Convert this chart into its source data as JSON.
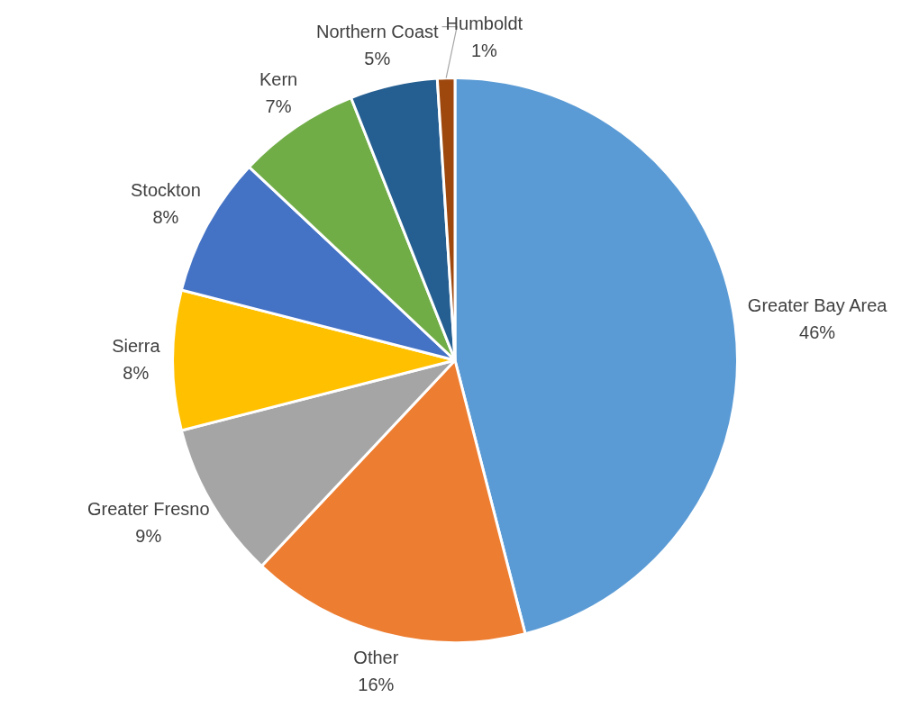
{
  "chart_data": {
    "type": "pie",
    "categories": [
      "Greater Bay Area",
      "Other",
      "Greater Fresno",
      "Sierra",
      "Stockton",
      "Kern",
      "Northern Coast",
      "Humboldt"
    ],
    "values": [
      46,
      16,
      9,
      8,
      8,
      7,
      5,
      1
    ],
    "value_labels": [
      "46%",
      "16%",
      "9%",
      "8%",
      "8%",
      "7%",
      "5%",
      "1%"
    ],
    "colors": [
      "#5b9bd5",
      "#ed7d31",
      "#a5a5a5",
      "#ffc000",
      "#4472c4",
      "#70ad47",
      "#255e91",
      "#9e480e"
    ],
    "legend": false
  }
}
